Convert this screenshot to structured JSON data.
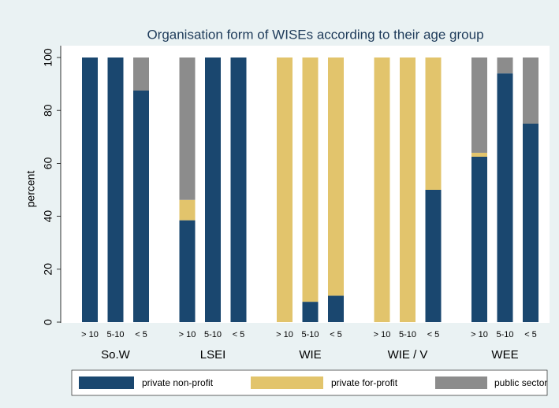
{
  "chart_data": {
    "type": "bar",
    "stacked": true,
    "title": "Organisation form of WISEs according to their age group",
    "y_label": "percent",
    "groups": [
      "So.W",
      "LSEI",
      "WIE",
      "WIE / V",
      "WEE"
    ],
    "subcategories": [
      "> 10",
      "5-10",
      "< 5"
    ],
    "series": [
      {
        "name": "private non-profit",
        "color": "#1a476f",
        "values": [
          100,
          100,
          87.5,
          38.5,
          100,
          100,
          0,
          7.7,
          10,
          0,
          0,
          50,
          62.5,
          94,
          75
        ]
      },
      {
        "name": "private for-profit",
        "color": "#e2c46c",
        "values": [
          0,
          0,
          0,
          7.7,
          0,
          0,
          100,
          92.3,
          90,
          100,
          100,
          50,
          1.5,
          0,
          0
        ]
      },
      {
        "name": "public sector",
        "color": "#8c8c8c",
        "values": [
          0,
          0,
          12.5,
          53.8,
          0,
          0,
          0,
          0,
          0,
          0,
          0,
          0,
          36,
          6,
          25
        ]
      }
    ],
    "ylim": [
      0,
      100
    ],
    "yticks": [
      0,
      20,
      40,
      60,
      80,
      100
    ],
    "grid": false
  }
}
